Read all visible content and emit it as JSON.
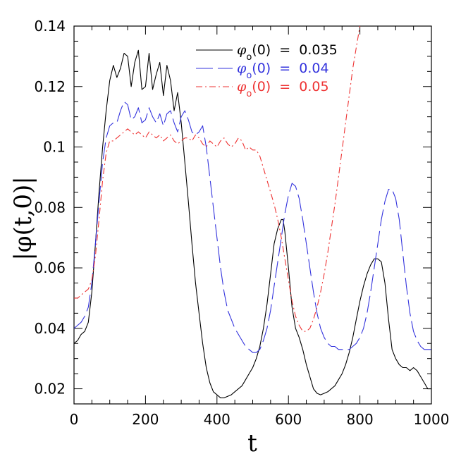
{
  "chart_data": {
    "type": "line",
    "xlabel": "t",
    "ylabel": "|φ(t,0)|",
    "xlim": [
      0,
      1000
    ],
    "ylim": [
      0.015,
      0.14
    ],
    "x_ticks": [
      0,
      200,
      400,
      600,
      800,
      1000
    ],
    "x_tick_labels": [
      "0",
      "200",
      "400",
      "600",
      "800",
      "1000"
    ],
    "y_ticks": [
      0.02,
      0.04,
      0.06,
      0.08,
      0.1,
      0.12,
      0.14
    ],
    "y_tick_labels": [
      "0.02",
      "0.04",
      "0.06",
      "0.08",
      "0.1",
      "0.12",
      "0.14"
    ],
    "grid": false,
    "legend_position": "top-right",
    "series": [
      {
        "name": "φ₀(0) = 0.035",
        "legend_symbol": "φ",
        "legend_subscript": "o",
        "legend_suffix": "(0)  =  0.035",
        "color": "#000000",
        "dash": "solid",
        "x": [
          0,
          10,
          20,
          30,
          40,
          50,
          60,
          70,
          80,
          90,
          100,
          110,
          120,
          130,
          140,
          150,
          160,
          170,
          180,
          190,
          200,
          210,
          220,
          230,
          240,
          250,
          260,
          270,
          280,
          290,
          300,
          310,
          320,
          330,
          340,
          350,
          360,
          370,
          380,
          390,
          400,
          410,
          420,
          430,
          440,
          450,
          460,
          470,
          480,
          490,
          500,
          510,
          520,
          530,
          540,
          550,
          560,
          570,
          580,
          585,
          590,
          600,
          610,
          620,
          630,
          640,
          650,
          660,
          670,
          680,
          690,
          700,
          710,
          720,
          730,
          740,
          750,
          760,
          770,
          780,
          790,
          800,
          810,
          820,
          830,
          840,
          850,
          860,
          870,
          880,
          890,
          900,
          910,
          920,
          930,
          940,
          950,
          960,
          970,
          980,
          990,
          1000
        ],
        "y": [
          0.035,
          0.036,
          0.038,
          0.039,
          0.042,
          0.052,
          0.068,
          0.085,
          0.1,
          0.112,
          0.122,
          0.127,
          0.123,
          0.126,
          0.131,
          0.13,
          0.12,
          0.128,
          0.132,
          0.119,
          0.12,
          0.131,
          0.119,
          0.124,
          0.128,
          0.117,
          0.127,
          0.122,
          0.112,
          0.118,
          0.108,
          0.095,
          0.082,
          0.068,
          0.055,
          0.045,
          0.035,
          0.027,
          0.022,
          0.019,
          0.018,
          0.017,
          0.017,
          0.0175,
          0.018,
          0.019,
          0.02,
          0.021,
          0.023,
          0.025,
          0.027,
          0.03,
          0.034,
          0.04,
          0.048,
          0.058,
          0.068,
          0.073,
          0.076,
          0.076,
          0.072,
          0.06,
          0.047,
          0.04,
          0.037,
          0.033,
          0.028,
          0.024,
          0.02,
          0.0185,
          0.018,
          0.0185,
          0.019,
          0.02,
          0.021,
          0.023,
          0.025,
          0.028,
          0.032,
          0.037,
          0.043,
          0.049,
          0.054,
          0.058,
          0.061,
          0.063,
          0.063,
          0.062,
          0.055,
          0.043,
          0.033,
          0.03,
          0.028,
          0.027,
          0.027,
          0.026,
          0.027,
          0.026,
          0.024,
          0.022,
          0.02,
          0.02
        ]
      },
      {
        "name": "φ₀(0) = 0.04",
        "legend_symbol": "φ",
        "legend_subscript": "o",
        "legend_suffix": "(0)  =  0.04",
        "color": "#3333dd",
        "dash": "long-dash",
        "x": [
          0,
          10,
          20,
          30,
          40,
          50,
          60,
          70,
          80,
          90,
          100,
          110,
          120,
          130,
          140,
          150,
          160,
          170,
          180,
          190,
          200,
          210,
          220,
          230,
          240,
          250,
          260,
          270,
          280,
          290,
          300,
          310,
          320,
          330,
          340,
          350,
          360,
          370,
          380,
          390,
          400,
          410,
          420,
          430,
          440,
          450,
          460,
          470,
          480,
          490,
          500,
          510,
          520,
          530,
          540,
          550,
          560,
          570,
          580,
          590,
          600,
          610,
          620,
          630,
          640,
          650,
          660,
          670,
          680,
          690,
          700,
          710,
          720,
          730,
          740,
          750,
          760,
          770,
          780,
          790,
          800,
          810,
          820,
          830,
          840,
          850,
          860,
          870,
          880,
          890,
          900,
          910,
          920,
          930,
          940,
          950,
          960,
          970,
          980,
          990,
          1000
        ],
        "y": [
          0.04,
          0.041,
          0.042,
          0.044,
          0.047,
          0.055,
          0.068,
          0.082,
          0.095,
          0.103,
          0.107,
          0.108,
          0.108,
          0.112,
          0.115,
          0.114,
          0.109,
          0.11,
          0.113,
          0.108,
          0.109,
          0.113,
          0.11,
          0.108,
          0.111,
          0.107,
          0.111,
          0.112,
          0.108,
          0.105,
          0.11,
          0.112,
          0.109,
          0.105,
          0.104,
          0.105,
          0.107,
          0.1,
          0.09,
          0.08,
          0.07,
          0.06,
          0.052,
          0.046,
          0.043,
          0.04,
          0.038,
          0.036,
          0.034,
          0.033,
          0.032,
          0.032,
          0.033,
          0.036,
          0.04,
          0.046,
          0.054,
          0.062,
          0.07,
          0.078,
          0.084,
          0.088,
          0.087,
          0.083,
          0.076,
          0.068,
          0.06,
          0.052,
          0.045,
          0.04,
          0.037,
          0.035,
          0.034,
          0.034,
          0.033,
          0.033,
          0.033,
          0.033,
          0.034,
          0.035,
          0.037,
          0.04,
          0.045,
          0.052,
          0.06,
          0.068,
          0.076,
          0.082,
          0.086,
          0.086,
          0.083,
          0.076,
          0.065,
          0.054,
          0.045,
          0.039,
          0.036,
          0.034,
          0.033,
          0.033,
          0.033
        ]
      },
      {
        "name": "φ₀(0) = 0.05",
        "legend_symbol": "φ",
        "legend_subscript": "o",
        "legend_suffix": "(0)  =  0.05",
        "color": "#ee3333",
        "dash": "dash-dot",
        "x": [
          0,
          10,
          20,
          30,
          40,
          50,
          60,
          70,
          80,
          90,
          100,
          110,
          120,
          130,
          140,
          150,
          160,
          170,
          180,
          190,
          200,
          210,
          220,
          230,
          240,
          250,
          260,
          270,
          280,
          290,
          300,
          310,
          320,
          330,
          340,
          350,
          360,
          370,
          380,
          390,
          400,
          410,
          420,
          430,
          440,
          450,
          460,
          470,
          480,
          490,
          500,
          510,
          520,
          530,
          540,
          550,
          560,
          570,
          580,
          590,
          600,
          610,
          620,
          630,
          640,
          650,
          660,
          670,
          680,
          690,
          700,
          710,
          720,
          730,
          740,
          750,
          760,
          770,
          780,
          790,
          800,
          805
        ],
        "y": [
          0.05,
          0.05,
          0.051,
          0.052,
          0.053,
          0.056,
          0.064,
          0.076,
          0.089,
          0.098,
          0.102,
          0.102,
          0.103,
          0.104,
          0.105,
          0.106,
          0.105,
          0.104,
          0.105,
          0.104,
          0.103,
          0.105,
          0.104,
          0.103,
          0.104,
          0.102,
          0.103,
          0.104,
          0.102,
          0.101,
          0.102,
          0.103,
          0.103,
          0.102,
          0.104,
          0.103,
          0.101,
          0.1,
          0.102,
          0.101,
          0.1,
          0.102,
          0.103,
          0.101,
          0.1,
          0.101,
          0.103,
          0.102,
          0.099,
          0.1,
          0.099,
          0.099,
          0.097,
          0.093,
          0.089,
          0.085,
          0.081,
          0.076,
          0.07,
          0.063,
          0.056,
          0.049,
          0.044,
          0.041,
          0.039,
          0.039,
          0.04,
          0.043,
          0.047,
          0.052,
          0.058,
          0.065,
          0.073,
          0.081,
          0.09,
          0.099,
          0.108,
          0.117,
          0.126,
          0.133,
          0.14,
          0.143
        ]
      }
    ]
  }
}
